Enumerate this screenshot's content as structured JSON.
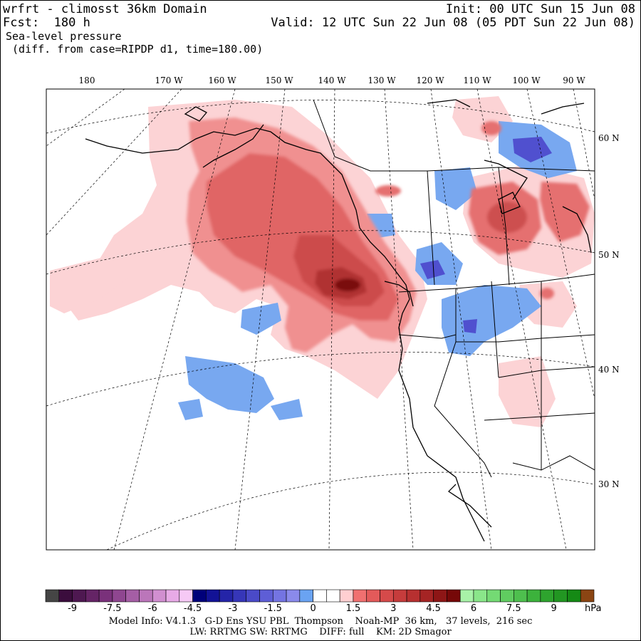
{
  "header": {
    "model_title": "wrfrt - climosst 36km Domain",
    "init": "Init: 00 UTC Sun 15 Jun 08",
    "fcst": "Fcst:  180 h",
    "valid": "Valid: 12 UTC Sun 22 Jun 08 (05 PDT Sun 22 Jun 08)",
    "field": "Sea-level pressure",
    "diff": " (diff. from case=RIPDP d1, time=180.00)"
  },
  "map": {
    "lon_labels": [
      "180",
      "170 W",
      "160 W",
      "150 W",
      "140 W",
      "130 W",
      "120 W",
      "110 W",
      "100 W",
      "90 W"
    ],
    "lat_labels": [
      "60 N",
      "50 N",
      "40 N",
      "30 N"
    ]
  },
  "colorbar": {
    "colors": [
      "#454545",
      "#3b0d3d",
      "#4e1851",
      "#652466",
      "#7a317b",
      "#8f4690",
      "#a55ea5",
      "#bb76ba",
      "#d18fd0",
      "#e7aae6",
      "#f6c9f5",
      "#00007a",
      "#121296",
      "#2424a8",
      "#3636b8",
      "#4a4ac8",
      "#5e5ed6",
      "#7474e2",
      "#8a8aeb",
      "#6aa3f2",
      "#ffffff",
      "#ffffff",
      "#ffcfd1",
      "#f07070",
      "#e35a5a",
      "#d54a4a",
      "#c63c3c",
      "#b73030",
      "#a52424",
      "#8e1616",
      "#760808",
      "#a8f2a8",
      "#8ae68a",
      "#74da74",
      "#60cc60",
      "#4ebf4e",
      "#3cb23c",
      "#2ea42e",
      "#229622",
      "#158a15",
      "#8b4513"
    ],
    "tick_labels": [
      "-9",
      "-7.5",
      "-6",
      "-4.5",
      "-3",
      "-1.5",
      "0",
      "1.5",
      "3",
      "4.5",
      "6",
      "7.5",
      "9"
    ],
    "units": "hPa"
  },
  "info": {
    "line1": "Model Info: V4.1.3   G-D Ens YSU PBL  Thompson    Noah-MP  36 km,   37 levels,  216 sec",
    "line2": "LW: RRTMG SW: RRTMG    DIFF: full    KM: 2D Smagor"
  }
}
